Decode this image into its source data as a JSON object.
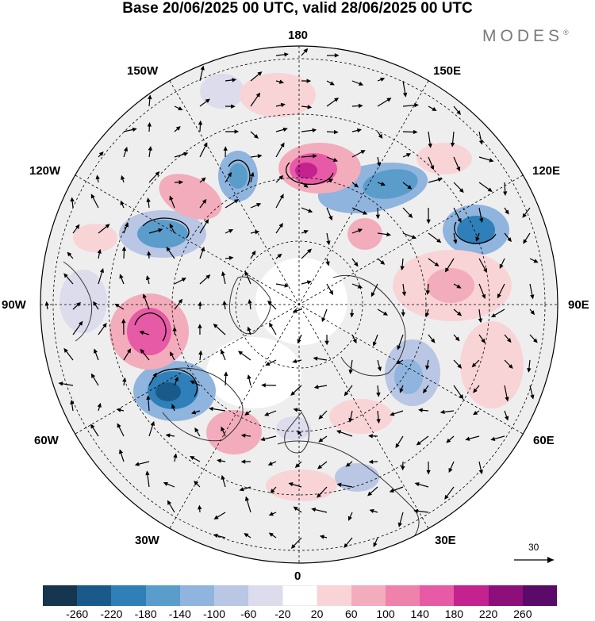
{
  "title": "Base 20/06/2025 00 UTC, valid 28/06/2025 00 UTC",
  "brand": "MODES",
  "brand_mark": "®",
  "longitude_labels": {
    "top": "180",
    "bottom": "0",
    "left": "90W",
    "right": "90E",
    "upper_left_1": "150W",
    "upper_left_2": "120W",
    "lower_left_1": "60W",
    "lower_left_2": "30W",
    "upper_right_1": "150E",
    "upper_right_2": "120E",
    "lower_right_1": "60E",
    "lower_right_2": "30E"
  },
  "vector_scale_label": "30",
  "colorbar": {
    "colors": [
      "#16354f",
      "#1a5a8a",
      "#2f7fb9",
      "#5a9cca",
      "#8fb4dd",
      "#b9c6e4",
      "#dcdcec",
      "#ffffff",
      "#f9d4d6",
      "#f3acbb",
      "#ee82ab",
      "#e65aa6",
      "#c3228f",
      "#8c0f7a",
      "#5a0a68"
    ],
    "ticks": [
      "-260",
      "-220",
      "-180",
      "-140",
      "-100",
      "-60",
      "-20",
      "20",
      "60",
      "100",
      "140",
      "180",
      "220",
      "260"
    ]
  },
  "anomaly_colors": {
    "land": "#e6e6e6",
    "ocean": "#ffffff"
  }
}
